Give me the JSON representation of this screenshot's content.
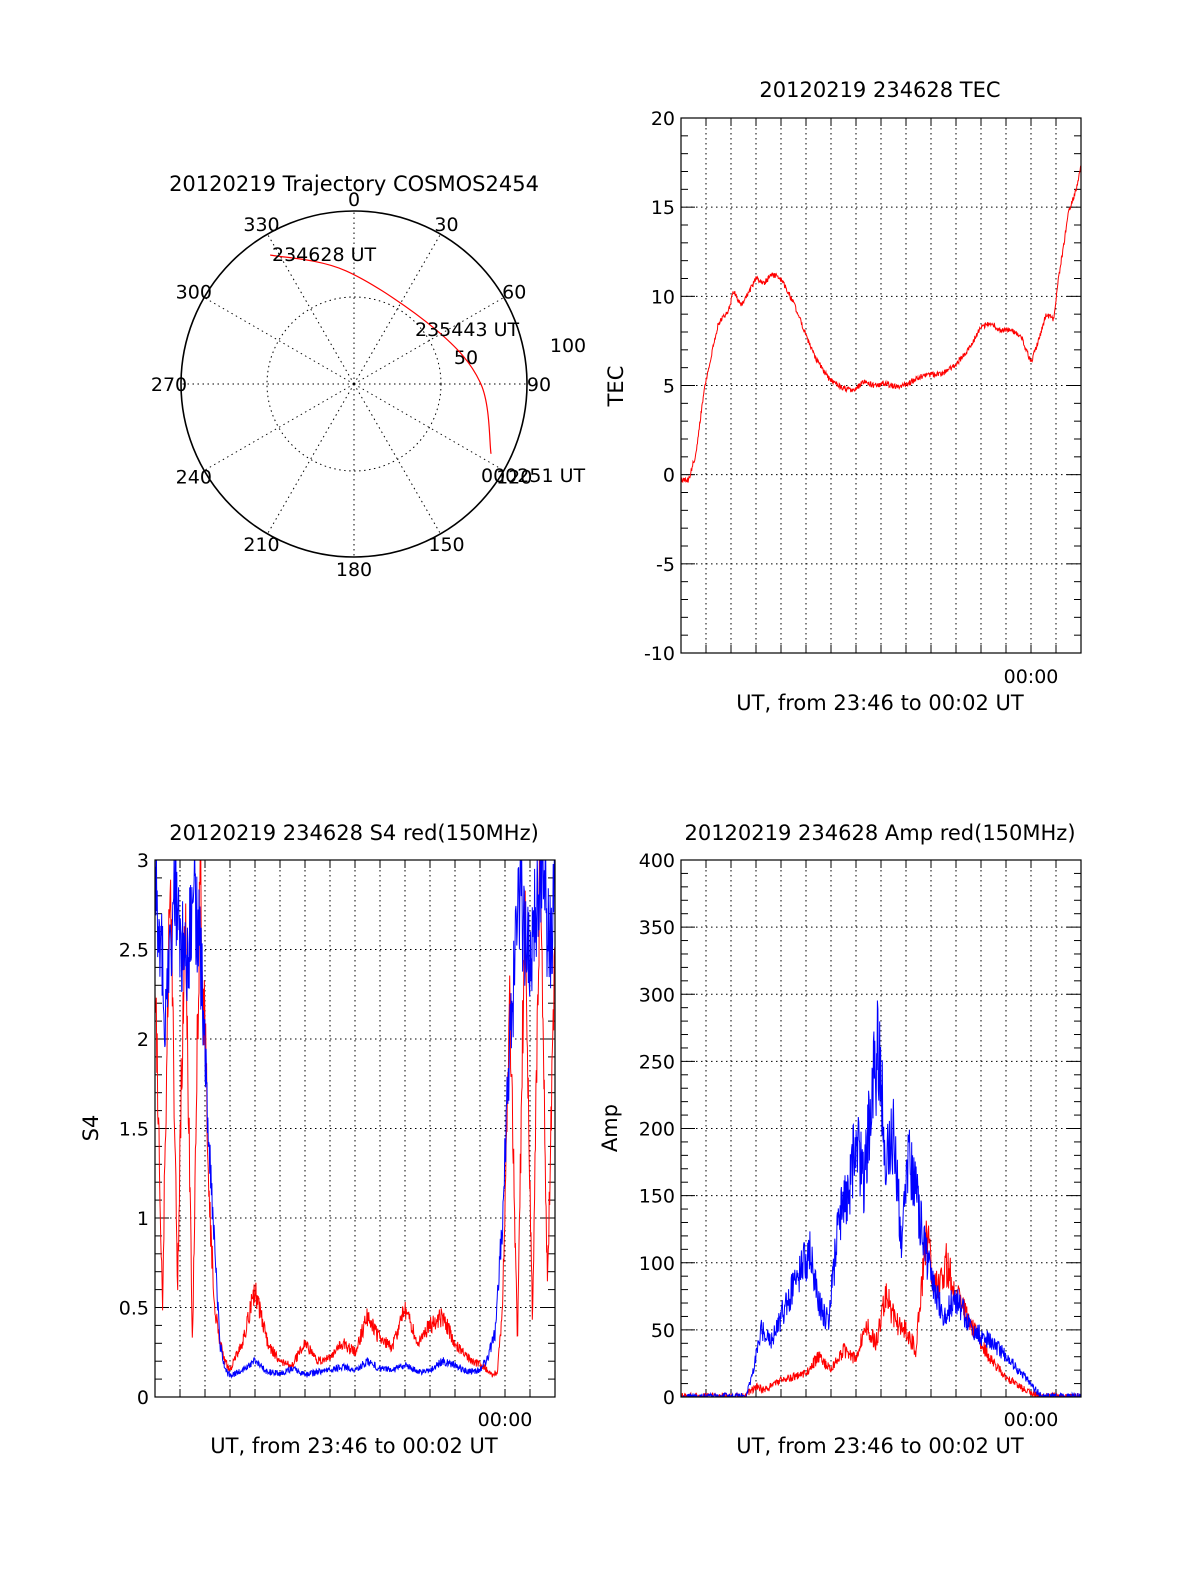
{
  "chart_data": [
    {
      "type": "polar",
      "id": "trajectory",
      "title": "20120219 Trajectory COSMOS2454",
      "angle_labels": [
        "0",
        "30",
        "60",
        "90",
        "120",
        "150",
        "180",
        "210",
        "240",
        "270",
        "300",
        "330"
      ],
      "radial_labels": [
        "50",
        "100"
      ],
      "colors": {
        "track": "#ff0000"
      },
      "track": [
        {
          "az": 327,
          "el": 10,
          "label": "234628 UT"
        },
        {
          "az": 356,
          "el": 31
        },
        {
          "az": 56,
          "el": 39,
          "label": "235443 UT"
        },
        {
          "az": 90,
          "el": 24
        },
        {
          "az": 117,
          "el": 10,
          "label": "000251 UT"
        }
      ]
    },
    {
      "type": "line",
      "id": "tec",
      "title": "20120219 234628 TEC",
      "xlabel": "UT, from 23:46 to 00:02 UT",
      "ylabel": "TEC",
      "ylim": [
        -10,
        20
      ],
      "yticks": [
        "-10",
        "-5",
        "0",
        "5",
        "10",
        "15",
        "20"
      ],
      "xlim": [
        0,
        16
      ],
      "xtick_label": {
        "x": 14,
        "text": "00:00"
      },
      "grid": true,
      "series": [
        {
          "color": "#ff0000",
          "x": [
            0.3,
            0.6,
            0.9,
            1.1,
            1.5,
            1.9,
            2.1,
            2.4,
            2.7,
            3.0,
            3.3,
            3.6,
            3.9,
            4.2,
            4.6,
            5.0,
            5.4,
            5.9,
            6.4,
            6.9,
            7.3,
            7.7,
            8.2,
            8.7,
            9.2,
            9.6,
            10.0,
            10.5,
            11.0,
            11.5,
            12.0,
            12.4,
            12.8,
            13.2,
            13.6,
            14.0,
            14.3,
            14.6,
            14.9,
            15.1,
            15.3,
            15.5,
            15.7,
            15.85,
            16.0
          ],
          "y": [
            -0.3,
            1.2,
            4.5,
            6.0,
            8.5,
            9.2,
            10.3,
            9.5,
            10.2,
            11.0,
            10.7,
            11.2,
            11.1,
            10.5,
            9.3,
            7.8,
            6.5,
            5.4,
            4.9,
            4.7,
            5.2,
            5.0,
            5.1,
            4.9,
            5.2,
            5.5,
            5.6,
            5.7,
            6.2,
            7.0,
            8.3,
            8.5,
            8.1,
            8.1,
            7.8,
            6.3,
            7.5,
            9.0,
            8.7,
            11.0,
            12.8,
            14.8,
            15.5,
            16.2,
            17.3
          ]
        }
      ]
    },
    {
      "type": "line",
      "id": "s4",
      "title": "20120219 234628 S4 red(150MHz)",
      "xlabel": "UT, from 23:46 to 00:02 UT",
      "ylabel": "S4",
      "ylim": [
        0,
        3
      ],
      "yticks": [
        "0",
        "0.5",
        "1",
        "1.5",
        "2",
        "2.5",
        "3"
      ],
      "xlim": [
        0,
        16
      ],
      "xtick_label": {
        "x": 14,
        "text": "00:00"
      },
      "grid": true,
      "series": [
        {
          "color": "#ff0000",
          "x": [
            0.0,
            0.3,
            0.6,
            0.9,
            1.2,
            1.5,
            1.8,
            2.0,
            2.2,
            2.4,
            2.6,
            2.8,
            3.0,
            3.5,
            4.0,
            4.5,
            5.0,
            5.5,
            6.0,
            6.5,
            7.0,
            7.5,
            8.0,
            8.5,
            9.0,
            9.5,
            10.0,
            10.5,
            11.0,
            11.5,
            12.0,
            12.5,
            13.0,
            13.3,
            13.5,
            13.7,
            13.9,
            14.2,
            14.5,
            14.8,
            15.1,
            15.4,
            15.7,
            16.0
          ],
          "y": [
            2.5,
            0.5,
            3.0,
            0.6,
            2.8,
            0.3,
            2.9,
            2.0,
            1.0,
            0.5,
            0.3,
            0.2,
            0.15,
            0.3,
            0.6,
            0.3,
            0.2,
            0.18,
            0.3,
            0.2,
            0.22,
            0.3,
            0.25,
            0.45,
            0.32,
            0.28,
            0.5,
            0.3,
            0.4,
            0.45,
            0.3,
            0.22,
            0.18,
            0.15,
            0.12,
            0.15,
            0.5,
            2.2,
            0.3,
            2.8,
            0.4,
            3.0,
            0.6,
            2.6
          ]
        },
        {
          "color": "#0000ff",
          "x": [
            0.0,
            0.4,
            0.8,
            1.2,
            1.6,
            1.9,
            2.1,
            2.4,
            2.6,
            2.8,
            3.0,
            3.5,
            4.0,
            4.5,
            5.0,
            5.5,
            6.0,
            6.5,
            7.0,
            7.5,
            8.0,
            8.5,
            9.0,
            9.5,
            10.0,
            10.5,
            11.0,
            11.5,
            12.0,
            12.5,
            13.0,
            13.3,
            13.6,
            13.9,
            14.2,
            14.6,
            15.0,
            15.4,
            15.8,
            16.0
          ],
          "y": [
            3.0,
            2.2,
            2.9,
            2.4,
            2.8,
            2.3,
            1.6,
            0.8,
            0.3,
            0.15,
            0.12,
            0.15,
            0.2,
            0.14,
            0.13,
            0.16,
            0.12,
            0.14,
            0.15,
            0.17,
            0.15,
            0.2,
            0.16,
            0.15,
            0.18,
            0.14,
            0.15,
            0.2,
            0.18,
            0.14,
            0.15,
            0.22,
            0.35,
            1.0,
            2.0,
            2.8,
            2.4,
            3.0,
            2.5,
            2.9
          ]
        }
      ]
    },
    {
      "type": "line",
      "id": "amp",
      "title": "20120219 234628 Amp red(150MHz)",
      "xlabel": "UT, from 23:46 to 00:02 UT",
      "ylabel": "Amp",
      "ylim": [
        0,
        400
      ],
      "yticks": [
        "0",
        "50",
        "100",
        "150",
        "200",
        "250",
        "300",
        "350",
        "400"
      ],
      "xlim": [
        0,
        16
      ],
      "xtick_label": {
        "x": 14,
        "text": "00:00"
      },
      "grid": true,
      "series": [
        {
          "color": "#ff0000",
          "x": [
            0.0,
            2.5,
            3.0,
            3.3,
            4.0,
            5.0,
            5.5,
            6.0,
            6.5,
            7.0,
            7.4,
            7.8,
            8.2,
            8.6,
            9.0,
            9.4,
            9.8,
            10.2,
            10.6,
            11.0,
            11.5,
            12.0,
            12.5,
            13.0,
            13.5,
            14.0,
            14.5,
            16.0
          ],
          "y": [
            0,
            0,
            8,
            5,
            12,
            18,
            30,
            20,
            35,
            28,
            55,
            40,
            75,
            55,
            50,
            35,
            120,
            80,
            100,
            75,
            60,
            40,
            25,
            15,
            8,
            2,
            0,
            0
          ]
        },
        {
          "color": "#0000ff",
          "x": [
            0.0,
            2.6,
            2.9,
            3.2,
            3.6,
            4.2,
            4.8,
            5.2,
            5.5,
            5.9,
            6.3,
            6.7,
            7.0,
            7.3,
            7.6,
            7.9,
            8.2,
            8.5,
            8.8,
            9.1,
            9.4,
            9.7,
            10.0,
            10.5,
            11.0,
            11.5,
            12.0,
            12.5,
            13.0,
            13.5,
            14.0,
            14.4,
            16.0
          ],
          "y": [
            0,
            0,
            20,
            50,
            40,
            70,
            95,
            110,
            70,
            55,
            130,
            150,
            200,
            160,
            215,
            265,
            175,
            200,
            120,
            180,
            150,
            120,
            85,
            60,
            75,
            55,
            45,
            40,
            30,
            20,
            10,
            0,
            0
          ]
        }
      ]
    }
  ]
}
